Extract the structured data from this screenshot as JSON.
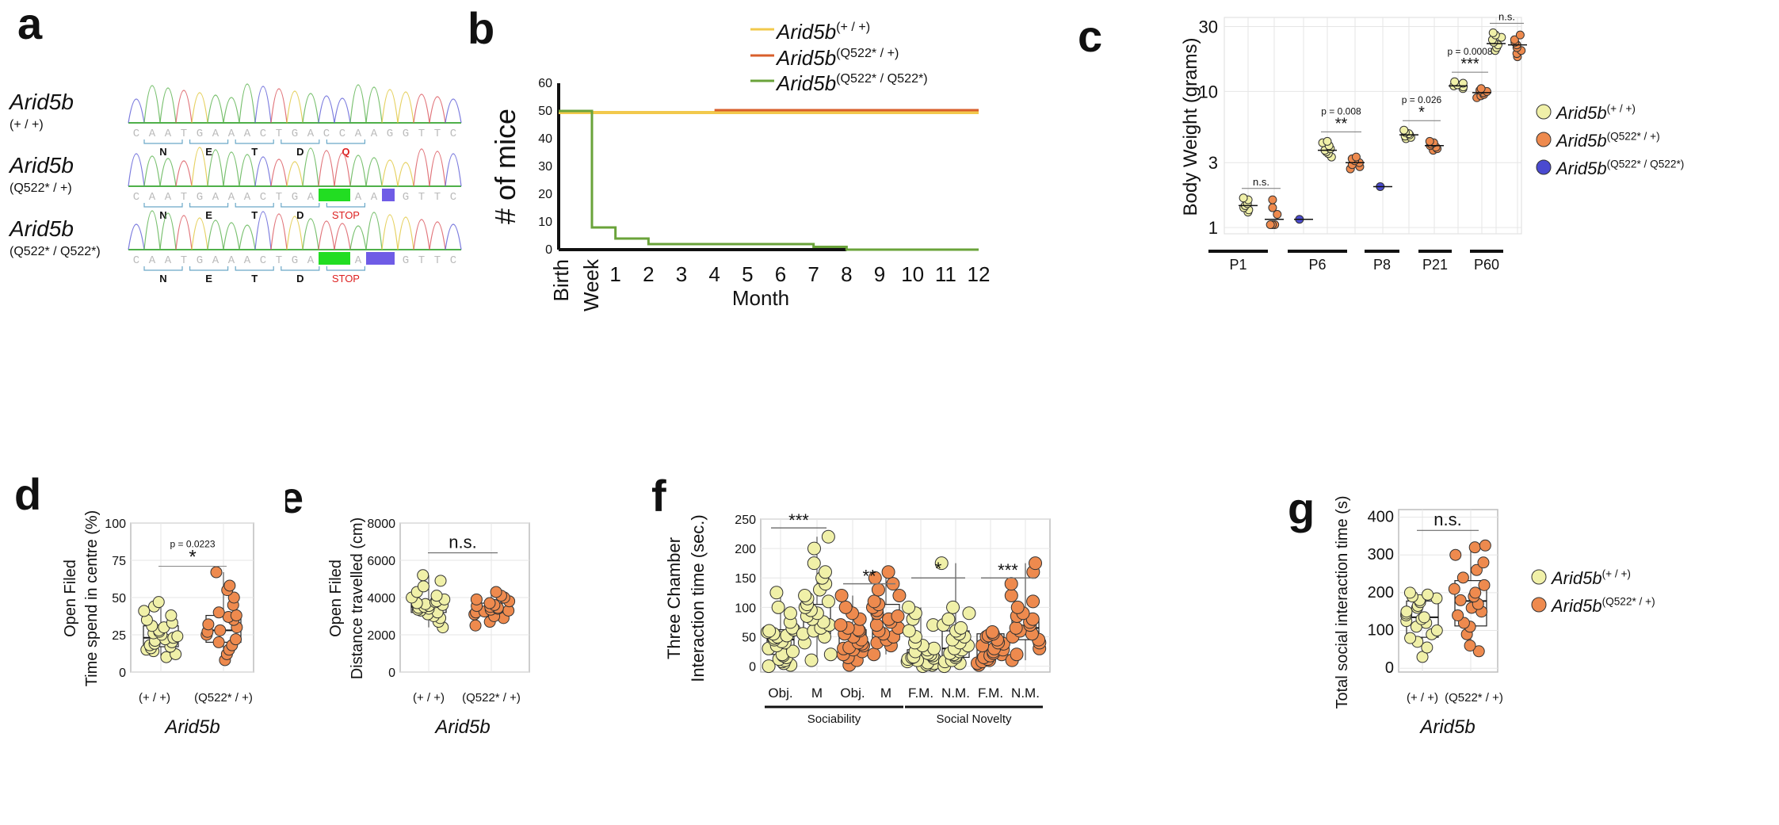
{
  "colors": {
    "wt": "#f0f0a8",
    "wt_line": "#f2c94c",
    "het": "#ee8a4e",
    "het_line": "#d95f2b",
    "hom": "#4a4ad0",
    "hom_line": "#6aa33a",
    "grid": "#e6e6e6",
    "frame": "#bdbdbd"
  },
  "panels": {
    "a": {
      "letter": "a"
    },
    "b": {
      "letter": "b"
    },
    "c": {
      "letter": "c"
    },
    "d": {
      "letter": "d"
    },
    "e": {
      "letter": "e"
    },
    "f": {
      "letter": "f"
    },
    "g": {
      "letter": "g"
    }
  },
  "chromatograms": {
    "gene": "Arid5b",
    "rows": [
      {
        "genotype": "(+ / +)",
        "sequence": "CAATGAAACTGACCAAGGTTC",
        "codons": [
          "N",
          "E",
          "T",
          "D",
          "Q"
        ],
        "highlight_codon": "Q"
      },
      {
        "genotype": "(Q522* / +)",
        "sequence": "CAATGAAACTGATTAAGGTTC",
        "codons": [
          "N",
          "E",
          "T",
          "D",
          "STOP"
        ],
        "highlight_codon": "STOP"
      },
      {
        "genotype": "(Q522* / Q522*)",
        "sequence": "CAATGAAACTGATTAAGGTTC",
        "codons": [
          "N",
          "E",
          "T",
          "D",
          "STOP"
        ],
        "highlight_codon": "STOP"
      }
    ]
  },
  "chart_data": [
    {
      "panel": "b",
      "type": "line",
      "title": "",
      "xlabel": "Month",
      "ylabel": "# of mice",
      "ylim": [
        0,
        60
      ],
      "yticks": [
        0,
        10,
        20,
        30,
        40,
        50,
        60
      ],
      "xticks": [
        "Birth",
        "Week",
        "1",
        "2",
        "3",
        "4",
        "5",
        "6",
        "7",
        "8",
        "9",
        "10",
        "11",
        "12"
      ],
      "legend": [
        "Arid5b(+ / +)",
        "Arid5b(Q522* / +)",
        "Arid5b(Q522* / Q522*)"
      ],
      "legend_sup": [
        "(+ / +)",
        "(Q522* / +)",
        "(Q522* / Q522*)"
      ],
      "legend_placement": "top",
      "series": [
        {
          "name": "Arid5b(+ / +)",
          "x": [
            0,
            12
          ],
          "y": [
            50,
            50
          ]
        },
        {
          "name": "Arid5b(Q522* / +)",
          "x": [
            4,
            12
          ],
          "y": [
            50,
            50
          ]
        },
        {
          "name": "Arid5b(Q522* / Q522*)",
          "step_x": [
            0,
            0.25,
            1,
            2,
            7,
            8,
            12
          ],
          "step_y": [
            50,
            8,
            4,
            2,
            1,
            0,
            0
          ]
        }
      ]
    },
    {
      "panel": "c",
      "type": "scatter",
      "ylabel": "Body Weight (grams)",
      "yscale": "log",
      "ylim": [
        0.9,
        35
      ],
      "yticks": [
        1,
        3,
        10,
        30
      ],
      "categories": [
        "P1",
        "P6",
        "P8",
        "P21",
        "P60"
      ],
      "legend": [
        "Arid5b(+ / +)",
        "Arid5b(Q522* / +)",
        "Arid5b(Q522* / Q522*)"
      ],
      "legend_sup": [
        "(+ / +)",
        "(Q522* / +)",
        "(Q522* / Q522*)"
      ],
      "legend_placement": "right",
      "annotations": [
        {
          "category": "P1",
          "stars": "n.s.",
          "p": ""
        },
        {
          "category": "P6",
          "stars": "**",
          "p": "p = 0.008"
        },
        {
          "category": "P8",
          "stars": "*",
          "p": "p = 0.026"
        },
        {
          "category": "P21",
          "stars": "***",
          "p": "p = 0.0008"
        },
        {
          "category": "P60",
          "stars": "n.s.",
          "p": ""
        }
      ],
      "series": [
        {
          "name": "Arid5b(+ / +)",
          "values": {
            "P1": [
              1.3,
              1.35,
              1.4,
              1.45,
              1.5,
              1.6,
              1.65
            ],
            "P6": [
              3.3,
              3.5,
              3.6,
              3.7,
              3.8,
              4.0,
              4.2,
              4.3
            ],
            "P8": [
              4.5,
              4.6,
              4.7,
              4.8,
              4.9,
              5.0,
              5.2
            ],
            "P21": [
              10.5,
              10.8,
              11.0,
              11.2,
              11.5,
              11.8
            ],
            "P60": [
              20,
              21,
              22,
              23,
              24,
              25,
              26,
              27
            ]
          },
          "medians": {
            "P1": 1.45,
            "P6": 3.7,
            "P8": 4.8,
            "P21": 11.0,
            "P60": 22.5
          }
        },
        {
          "name": "Arid5b(Q522* / +)",
          "values": {
            "P1": [
              1.05,
              1.05,
              1.05,
              1.25,
              1.4,
              1.6
            ],
            "P6": [
              2.7,
              2.8,
              2.9,
              3.0,
              3.1,
              3.2,
              3.3
            ],
            "P8": [
              3.7,
              3.8,
              3.9,
              4.0,
              4.1,
              4.2,
              4.3
            ],
            "P21": [
              9.0,
              9.3,
              9.5,
              9.8,
              10.0,
              10.2,
              10.5
            ],
            "P60": [
              18,
              19,
              20,
              21,
              22,
              23,
              24,
              26
            ]
          },
          "medians": {
            "P1": 1.15,
            "P6": 3.0,
            "P8": 4.0,
            "P21": 9.8,
            "P60": 22
          }
        },
        {
          "name": "Arid5b(Q522* / Q522*)",
          "values": {
            "P1": [
              1.15
            ],
            "P6": [
              2.0
            ]
          },
          "medians": {
            "P1": 1.15,
            "P6": 2.0
          }
        }
      ]
    },
    {
      "panel": "d",
      "type": "scatter",
      "ylabel": "Open Filed\nTime spend in centre (%)",
      "ylabel_lines": [
        "Open Filed",
        "Time spend in centre (%)"
      ],
      "xlabel": "Arid5b",
      "ylim": [
        0,
        100
      ],
      "yticks": [
        0,
        25,
        50,
        75,
        100
      ],
      "categories": [
        "(+ / +)",
        "(Q522* / +)"
      ],
      "annotation": {
        "stars": "*",
        "p": "p = 0.0223"
      },
      "box": [
        {
          "q1": 17,
          "median": 23,
          "q3": 31
        },
        {
          "q1": 20,
          "median": 28,
          "q3": 38
        }
      ],
      "series": [
        {
          "name": "(+ / +)",
          "values": [
            10,
            12,
            14,
            15,
            16,
            17,
            18,
            19,
            20,
            21,
            22,
            23,
            24,
            25,
            26,
            27,
            28,
            30,
            31,
            33,
            35,
            38,
            41,
            44,
            47
          ]
        },
        {
          "name": "(Q522* / +)",
          "values": [
            8,
            12,
            15,
            18,
            20,
            22,
            25,
            27,
            28,
            30,
            32,
            35,
            37,
            38,
            40,
            45,
            50,
            55,
            58,
            67
          ]
        }
      ]
    },
    {
      "panel": "e",
      "type": "scatter",
      "ylabel": "Open Filed\nDistance travelled (cm)",
      "ylabel_lines": [
        "Open Filed",
        "Distance travelled (cm)"
      ],
      "xlabel": "Arid5b",
      "ylim": [
        0,
        8000
      ],
      "yticks": [
        0,
        2000,
        4000,
        6000,
        8000
      ],
      "categories": [
        "(+ / +)",
        "(Q522* / +)"
      ],
      "annotation": {
        "stars": "n.s.",
        "p": ""
      },
      "box": [
        {
          "q1": 3200,
          "median": 3500,
          "q3": 3800
        },
        {
          "q1": 3100,
          "median": 3400,
          "q3": 3700
        }
      ],
      "series": [
        {
          "name": "(+ / +)",
          "values": [
            2400,
            2700,
            2900,
            3000,
            3100,
            3200,
            3300,
            3350,
            3400,
            3450,
            3500,
            3550,
            3600,
            3650,
            3700,
            3750,
            3800,
            3900,
            4000,
            4100,
            4300,
            4600,
            4900,
            5200
          ]
        },
        {
          "name": "(Q522* / +)",
          "values": [
            2500,
            2700,
            2900,
            3000,
            3100,
            3200,
            3250,
            3300,
            3350,
            3400,
            3450,
            3500,
            3550,
            3600,
            3700,
            3800,
            3900,
            4000,
            4100,
            4300
          ]
        }
      ]
    },
    {
      "panel": "f",
      "type": "scatter",
      "ylabel": "Three Chamber\nInteraction time (sec.)",
      "ylabel_lines": [
        "Three Chamber",
        "Interaction time (sec.)"
      ],
      "ylim": [
        -10,
        250
      ],
      "yticks": [
        0,
        50,
        100,
        150,
        200,
        250
      ],
      "categories": [
        "Obj.",
        "M",
        "Obj.",
        "M",
        "F.M.",
        "N.M.",
        "F.M.",
        "N.M."
      ],
      "groups": [
        {
          "label": "Sociability",
          "span": [
            0,
            3
          ]
        },
        {
          "label": "Social Novelty",
          "span": [
            4,
            7
          ]
        }
      ],
      "annotations": [
        {
          "pair": [
            0,
            1
          ],
          "stars": "***"
        },
        {
          "pair": [
            2,
            3
          ],
          "stars": "**"
        },
        {
          "pair": [
            4,
            5
          ],
          "stars": "*"
        },
        {
          "pair": [
            6,
            7
          ],
          "stars": "***"
        }
      ],
      "box": [
        {
          "q1": 20,
          "median": 45,
          "q3": 62
        },
        {
          "q1": 55,
          "median": 80,
          "q3": 105
        },
        {
          "q1": 22,
          "median": 38,
          "q3": 62
        },
        {
          "q1": 45,
          "median": 75,
          "q3": 105
        },
        {
          "q1": 5,
          "median": 15,
          "q3": 28
        },
        {
          "q1": 15,
          "median": 30,
          "q3": 60
        },
        {
          "q1": 15,
          "median": 30,
          "q3": 55
        },
        {
          "q1": 45,
          "median": 65,
          "q3": 80
        }
      ],
      "series": [
        {
          "name": "(+ / +) Obj.",
          "group": 0,
          "values": [
            0,
            2,
            5,
            8,
            10,
            12,
            15,
            18,
            20,
            25,
            30,
            35,
            40,
            42,
            45,
            48,
            50,
            52,
            55,
            58,
            60,
            62,
            65,
            75,
            90,
            100,
            125
          ]
        },
        {
          "name": "(+ / +) M",
          "group": 1,
          "values": [
            10,
            20,
            40,
            50,
            55,
            60,
            65,
            70,
            75,
            80,
            85,
            90,
            95,
            100,
            105,
            110,
            115,
            120,
            130,
            140,
            150,
            160,
            175,
            200,
            220
          ]
        },
        {
          "name": "(Q522* / +) Obj.",
          "group": 2,
          "values": [
            2,
            10,
            15,
            20,
            25,
            28,
            30,
            32,
            35,
            38,
            40,
            45,
            50,
            55,
            60,
            62,
            65,
            70,
            80,
            90,
            100,
            120
          ]
        },
        {
          "name": "(Q522* / +) M",
          "group": 3,
          "values": [
            20,
            35,
            40,
            45,
            50,
            55,
            60,
            65,
            70,
            75,
            80,
            85,
            90,
            95,
            100,
            105,
            110,
            120,
            130,
            140,
            150,
            160
          ]
        },
        {
          "name": "(+ / +) F.M.",
          "group": 4,
          "values": [
            0,
            2,
            3,
            5,
            6,
            8,
            10,
            12,
            14,
            15,
            16,
            18,
            20,
            22,
            25,
            28,
            30,
            35,
            40,
            50,
            60,
            70,
            80,
            90,
            100
          ]
        },
        {
          "name": "(+ / +) N.M.",
          "group": 5,
          "values": [
            0,
            5,
            8,
            10,
            15,
            18,
            20,
            22,
            25,
            28,
            30,
            35,
            40,
            45,
            50,
            55,
            60,
            65,
            70,
            80,
            90,
            100,
            175
          ]
        },
        {
          "name": "(Q522* / +) F.M.",
          "group": 6,
          "values": [
            2,
            5,
            8,
            10,
            12,
            15,
            18,
            20,
            22,
            25,
            28,
            30,
            35,
            38,
            40,
            45,
            50,
            52,
            55,
            58
          ]
        },
        {
          "name": "(Q522* / +) N.M.",
          "group": 7,
          "values": [
            10,
            20,
            30,
            40,
            45,
            50,
            55,
            60,
            65,
            70,
            75,
            80,
            85,
            90,
            100,
            110,
            120,
            140,
            160,
            175
          ]
        }
      ]
    },
    {
      "panel": "g",
      "type": "scatter",
      "ylabel": "Total social interaction time (s)",
      "xlabel": "Arid5b",
      "ylim": [
        -10,
        420
      ],
      "yticks": [
        0,
        100,
        200,
        300,
        400
      ],
      "categories": [
        "(+ / +)",
        "(Q522* / +)"
      ],
      "annotation": {
        "stars": "n.s.",
        "p": ""
      },
      "box": [
        {
          "q1": 82,
          "median": 135,
          "q3": 178
        },
        {
          "q1": 112,
          "median": 178,
          "q3": 232
        }
      ],
      "legend": [
        "Arid5b(+ / +)",
        "Arid5b(Q522* / +)"
      ],
      "legend_sup": [
        "(+ / +)",
        "(Q522* / +)"
      ],
      "legend_placement": "right",
      "series": [
        {
          "name": "(+ / +)",
          "values": [
            30,
            55,
            70,
            80,
            90,
            100,
            110,
            120,
            125,
            130,
            135,
            140,
            145,
            150,
            160,
            165,
            175,
            180,
            185,
            190,
            195,
            200
          ]
        },
        {
          "name": "(Q522* / +)",
          "values": [
            45,
            60,
            90,
            110,
            120,
            140,
            150,
            160,
            170,
            180,
            190,
            200,
            210,
            220,
            240,
            260,
            280,
            300,
            320,
            325
          ]
        }
      ]
    }
  ],
  "labels": {
    "gene": "Arid5b",
    "ns": "n.s."
  }
}
